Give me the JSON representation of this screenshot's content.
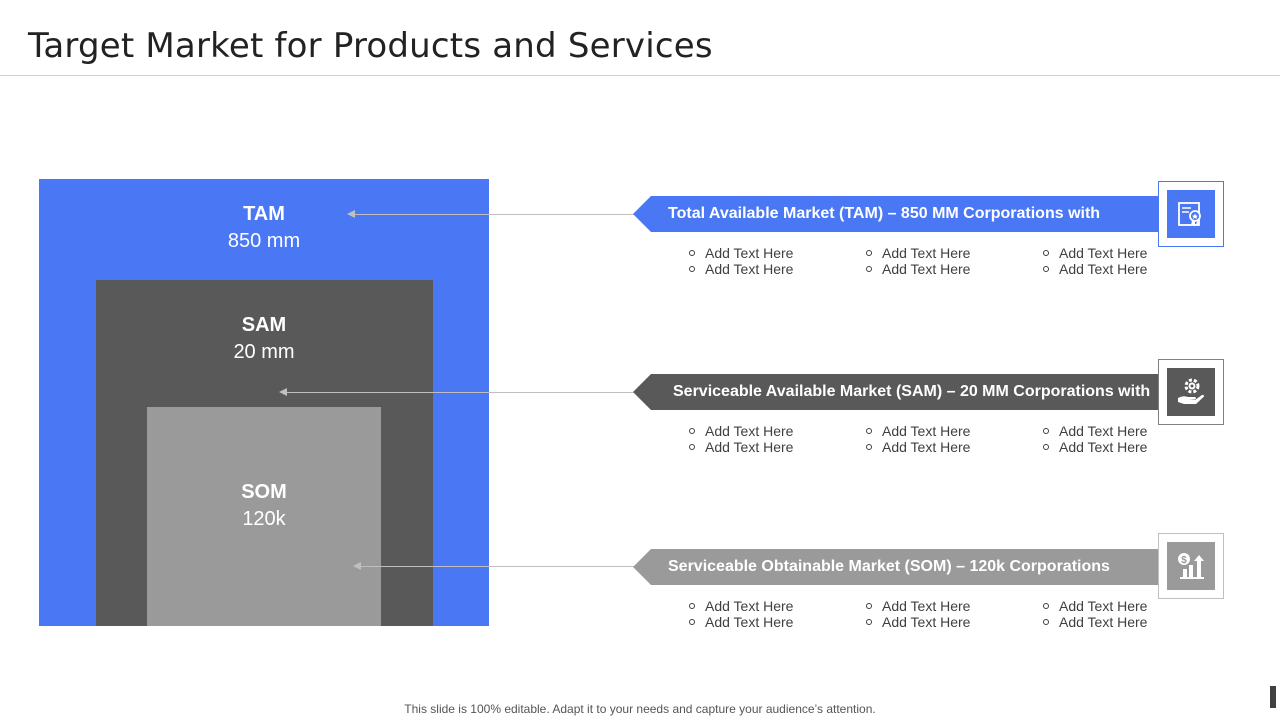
{
  "title": "Target Market for Products and Services",
  "markets": [
    {
      "abbr": "TAM",
      "value": "850 mm",
      "banner": "Total Available Market (TAM) – 850 MM Corporations with",
      "icon": "certificate-award-icon",
      "color": "#4a78f5"
    },
    {
      "abbr": "SAM",
      "value": "20 mm",
      "banner": "Serviceable Available Market (SAM) – 20 MM Corporations with",
      "icon": "hand-gear-icon",
      "color": "#595959"
    },
    {
      "abbr": "SOM",
      "value": "120k",
      "banner": "Serviceable Obtainable Market (SOM) –  120k Corporations",
      "icon": "dollar-growth-icon",
      "color": "#9a9a9a"
    }
  ],
  "bullet_text": "Add Text Here",
  "footer": "This slide is 100% editable. Adapt it to your needs and capture your audience’s attention."
}
